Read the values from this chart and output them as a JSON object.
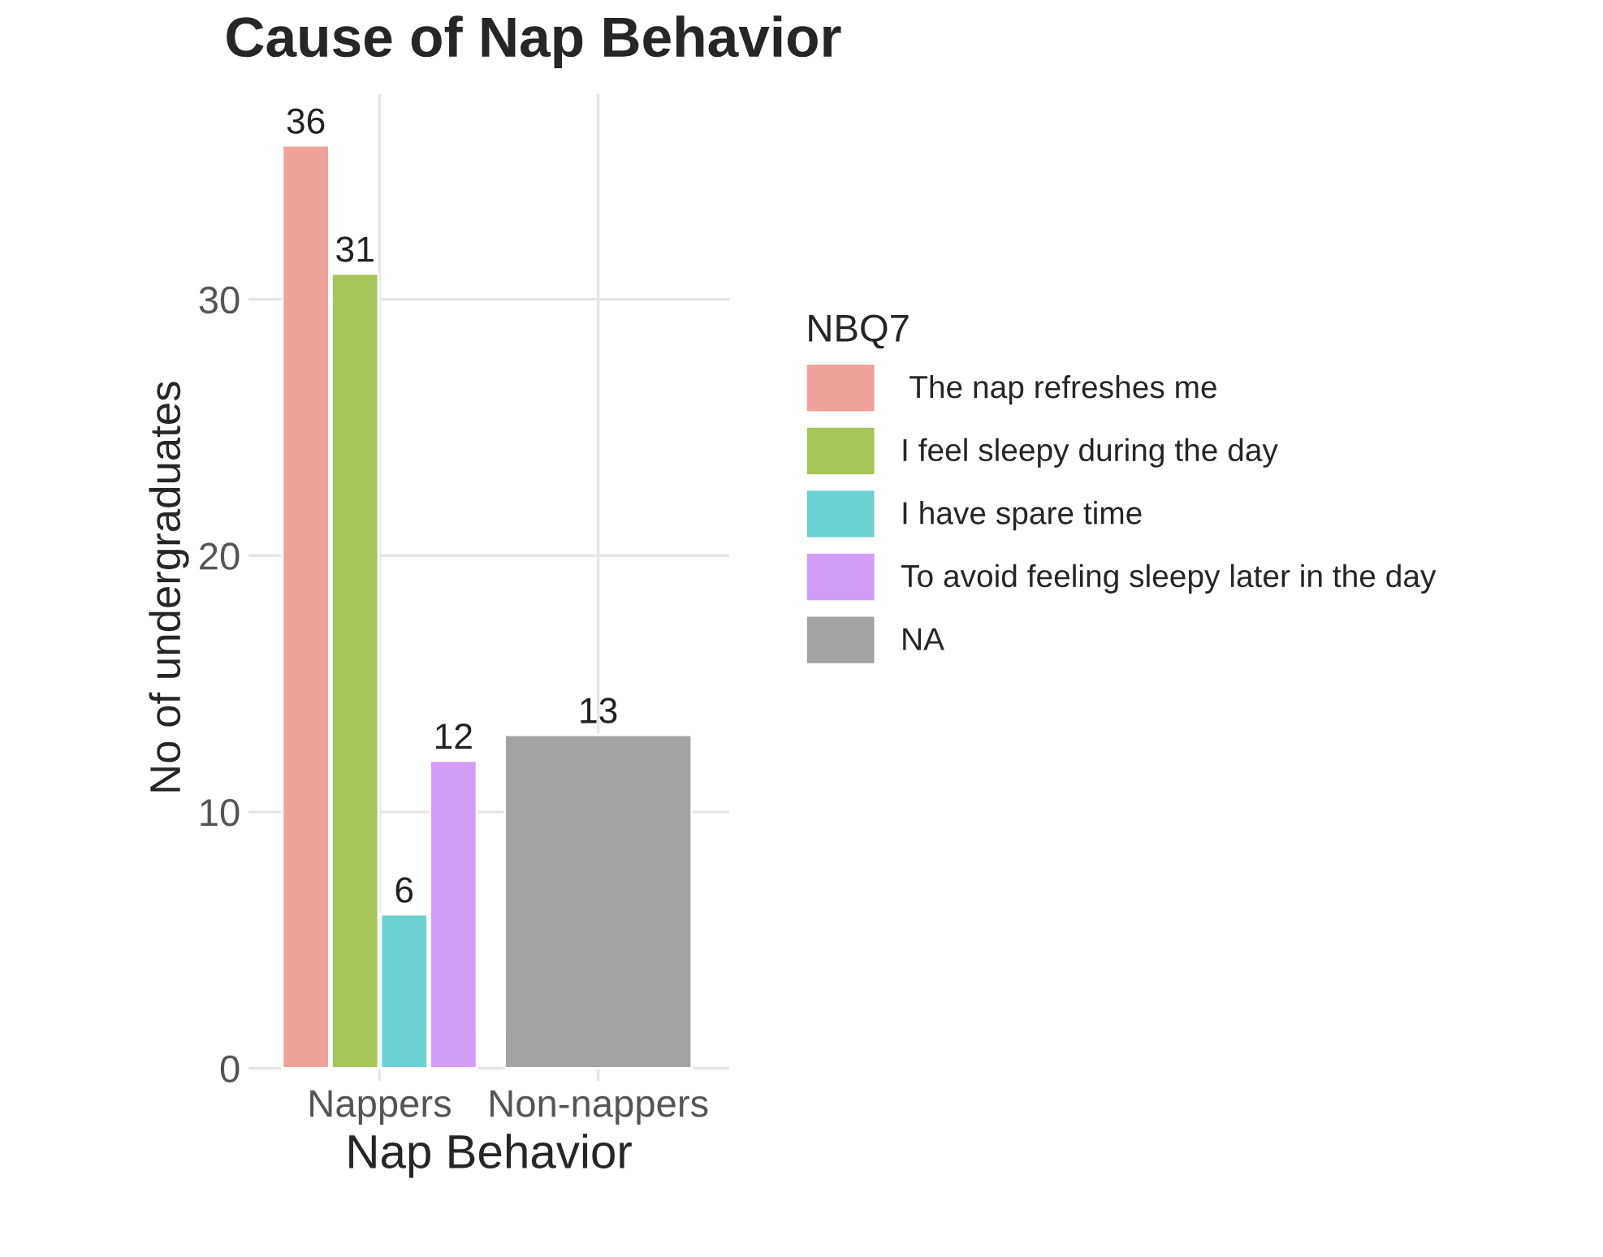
{
  "chart_data": {
    "type": "bar",
    "title": "Cause of Nap Behavior",
    "xlabel": "Nap Behavior",
    "ylabel": "No of undergraduates",
    "legend_title": "NBQ7",
    "categories": [
      "Nappers",
      "Non-nappers"
    ],
    "series": [
      {
        "name": " The nap refreshes me",
        "color": "#eea29a",
        "values": [
          36,
          null
        ]
      },
      {
        "name": "I feel sleepy during the day",
        "color": "#a6c45a",
        "values": [
          31,
          null
        ]
      },
      {
        "name": "I have spare time",
        "color": "#6dd0d3",
        "values": [
          6,
          null
        ]
      },
      {
        "name": "To avoid feeling sleepy later in the day",
        "color": "#d39cf7",
        "values": [
          12,
          null
        ]
      },
      {
        "name": "NA",
        "color": "#a3a3a3",
        "values": [
          null,
          13
        ]
      }
    ],
    "ylim": [
      -0.5,
      38
    ],
    "yticks": [
      0,
      10,
      20,
      30
    ],
    "grid": true,
    "legend": "right",
    "data_labels": true
  }
}
